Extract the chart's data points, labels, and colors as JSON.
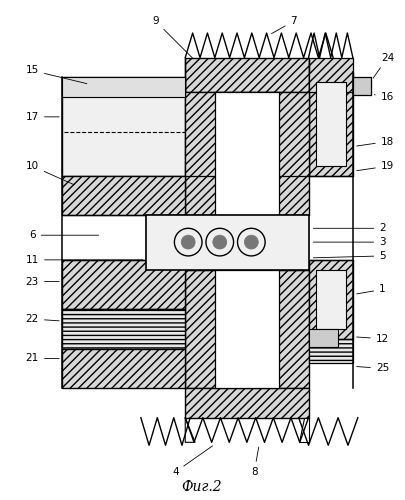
{
  "title": "Фиг.2",
  "bg_color": "#ffffff",
  "fig_width": 4.05,
  "fig_height": 5.0
}
